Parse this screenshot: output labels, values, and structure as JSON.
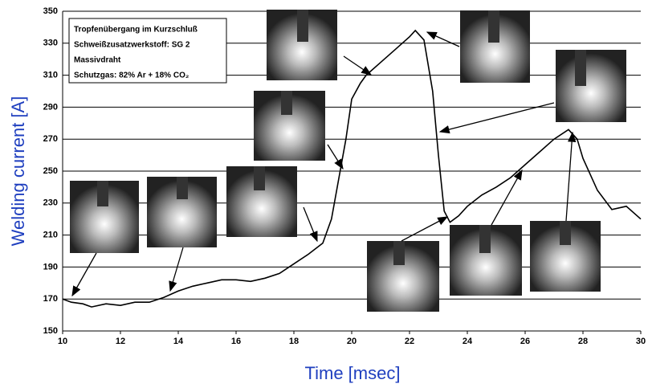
{
  "chart_data": {
    "type": "line",
    "x_label": "Time [msec]",
    "y_label": "Welding current [A]",
    "annotations": [
      "Tropfenübergang im Kurzschluß",
      "Schweißzusatzwerkstoff: SG 2",
      "Massivdraht",
      "Schutzgas: 82% Ar + 18% CO₂"
    ],
    "x": [
      10,
      10.3,
      10.7,
      11,
      11.5,
      12,
      12.5,
      13,
      13.5,
      14,
      14.5,
      15,
      15.5,
      16,
      16.5,
      17,
      17.5,
      18,
      18.5,
      19,
      19.3,
      19.6,
      19.8,
      20,
      20.3,
      20.5,
      21,
      21.5,
      22,
      22.2,
      22.5,
      22.8,
      23,
      23.2,
      23.4,
      23.7,
      24,
      24.5,
      25,
      25.5,
      26,
      26.5,
      27,
      27.5,
      27.8,
      28,
      28.5,
      29,
      29.5,
      30
    ],
    "values": [
      170,
      168,
      167,
      165,
      167,
      166,
      168,
      168,
      171,
      175,
      178,
      180,
      182,
      182,
      181,
      183,
      186,
      192,
      198,
      205,
      220,
      250,
      270,
      295,
      305,
      310,
      318,
      326,
      334,
      338,
      332,
      300,
      260,
      225,
      218,
      222,
      228,
      235,
      240,
      246,
      254,
      262,
      270,
      276,
      270,
      258,
      238,
      226,
      228,
      220
    ],
    "color": "#000000",
    "xlim": [
      10,
      30
    ],
    "xticks": [
      10,
      12,
      14,
      16,
      18,
      20,
      22,
      24,
      26,
      28,
      30
    ],
    "ylim": [
      150,
      350
    ],
    "yticks": [
      150,
      170,
      190,
      210,
      230,
      250,
      270,
      290,
      310,
      330,
      350
    ],
    "grid": true
  }
}
